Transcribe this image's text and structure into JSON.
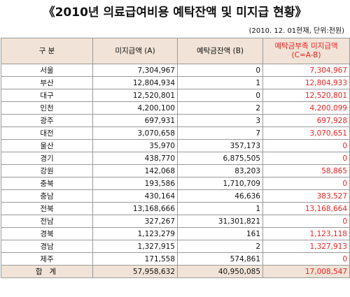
{
  "title": "《2010년 의료급여비용 예탁잔액 및 미지급 현황》",
  "note": "(2010. 12. 01현재, 단위:천원)",
  "headers": {
    "region": "구  분",
    "unpaid": "미지급액 (A)",
    "deposit": "예탁금잔액 (B)",
    "shortage_line1": "예탁금부족 미지급액",
    "shortage_line2": "(C=A-B)"
  },
  "rows": [
    {
      "region": "서울",
      "unpaid": "7,304,967",
      "deposit": "0",
      "shortage": "7,304,967"
    },
    {
      "region": "부산",
      "unpaid": "12,804,934",
      "deposit": "1",
      "shortage": "12,804,933"
    },
    {
      "region": "대구",
      "unpaid": "12,520,801",
      "deposit": "0",
      "shortage": "12,520,801"
    },
    {
      "region": "인천",
      "unpaid": "4,200,100",
      "deposit": "2",
      "shortage": "4,200,099"
    },
    {
      "region": "광주",
      "unpaid": "697,931",
      "deposit": "3",
      "shortage": "697,928"
    },
    {
      "region": "대전",
      "unpaid": "3,070,658",
      "deposit": "7",
      "shortage": "3,070,651"
    },
    {
      "region": "울산",
      "unpaid": "35,970",
      "deposit": "357,173",
      "shortage": "0"
    },
    {
      "region": "경기",
      "unpaid": "438,770",
      "deposit": "6,875,505",
      "shortage": "0"
    },
    {
      "region": "강원",
      "unpaid": "142,068",
      "deposit": "83,203",
      "shortage": "58,865"
    },
    {
      "region": "충북",
      "unpaid": "193,586",
      "deposit": "1,710,709",
      "shortage": "0"
    },
    {
      "region": "충남",
      "unpaid": "430,164",
      "deposit": "46,636",
      "shortage": "383,527"
    },
    {
      "region": "전북",
      "unpaid": "13,168,666",
      "deposit": "1",
      "shortage": "13,168,664"
    },
    {
      "region": "전남",
      "unpaid": "327,267",
      "deposit": "31,301,821",
      "shortage": "0"
    },
    {
      "region": "경북",
      "unpaid": "1,123,279",
      "deposit": "161",
      "shortage": "1,123,118"
    },
    {
      "region": "경남",
      "unpaid": "1,327,915",
      "deposit": "2",
      "shortage": "1,327,913"
    },
    {
      "region": "제주",
      "unpaid": "171,558",
      "deposit": "574,861",
      "shortage": "0"
    }
  ],
  "total": {
    "label": "합계",
    "unpaid": "57,958,632",
    "deposit": "40,950,085",
    "shortage": "17,008,547"
  },
  "colors": {
    "header_bg": "#f1e3d7",
    "accent_red": "#ee2222",
    "border": "#9a9a9a"
  }
}
